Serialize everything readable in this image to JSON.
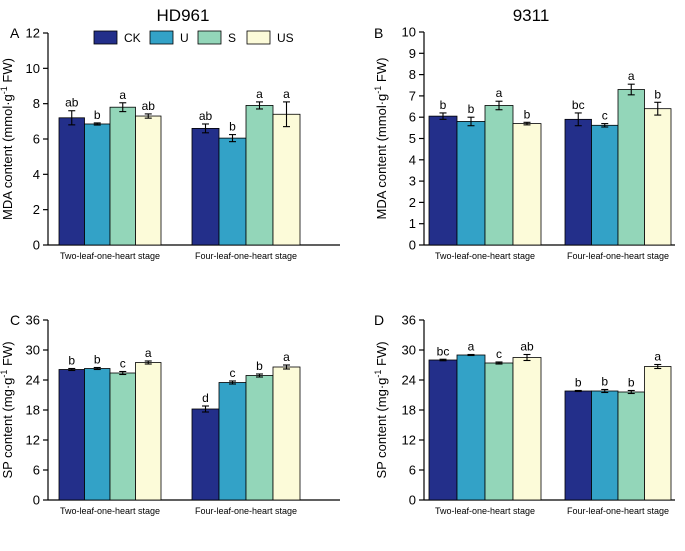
{
  "figure": {
    "column_titles": [
      "HD961",
      "9311"
    ],
    "legend": [
      {
        "label": "CK",
        "color": "#232f8a"
      },
      {
        "label": "U",
        "color": "#33a2c7"
      },
      {
        "label": "S",
        "color": "#93d6b9"
      },
      {
        "label": "US",
        "color": "#fcfbd9"
      }
    ]
  },
  "chart_data": [
    {
      "panel": "A",
      "type": "bar",
      "title": "",
      "ylabel_main": "MDA content (mmol·g",
      "ylabel_sup": "-1",
      "ylabel_tail": " FW)",
      "ylim": [
        0,
        12
      ],
      "yticks": [
        0,
        2,
        4,
        6,
        8,
        10,
        12
      ],
      "categories": [
        "Two-leaf-one-heart stage",
        "Four-leaf-one-heart stage"
      ],
      "series": [
        {
          "name": "CK",
          "values": [
            7.2,
            6.6
          ],
          "errors": [
            0.4,
            0.25
          ],
          "letters": [
            "ab",
            "ab"
          ]
        },
        {
          "name": "U",
          "values": [
            6.85,
            6.05
          ],
          "errors": [
            0.06,
            0.2
          ],
          "letters": [
            "b",
            "b"
          ]
        },
        {
          "name": "S",
          "values": [
            7.8,
            7.9
          ],
          "errors": [
            0.25,
            0.2
          ],
          "letters": [
            "a",
            "a"
          ]
        },
        {
          "name": "US",
          "values": [
            7.3,
            7.4
          ],
          "errors": [
            0.12,
            0.7
          ],
          "letters": [
            "ab",
            "a"
          ]
        }
      ]
    },
    {
      "panel": "B",
      "type": "bar",
      "title": "",
      "ylabel_main": "MDA content (mmol·g",
      "ylabel_sup": "-1",
      "ylabel_tail": " FW)",
      "ylim": [
        0,
        10
      ],
      "yticks": [
        0,
        1,
        2,
        3,
        4,
        5,
        6,
        7,
        8,
        9,
        10
      ],
      "categories": [
        "Two-leaf-one-heart stage",
        "Four-leaf-one-heart stage"
      ],
      "series": [
        {
          "name": "CK",
          "values": [
            6.05,
            5.9
          ],
          "errors": [
            0.15,
            0.3
          ],
          "letters": [
            "b",
            "bc"
          ]
        },
        {
          "name": "U",
          "values": [
            5.8,
            5.62
          ],
          "errors": [
            0.2,
            0.08
          ],
          "letters": [
            "b",
            "c"
          ]
        },
        {
          "name": "S",
          "values": [
            6.55,
            7.3
          ],
          "errors": [
            0.2,
            0.25
          ],
          "letters": [
            "a",
            "a"
          ]
        },
        {
          "name": "US",
          "values": [
            5.7,
            6.4
          ],
          "errors": [
            0.06,
            0.3
          ],
          "letters": [
            "b",
            "b"
          ]
        }
      ]
    },
    {
      "panel": "C",
      "type": "bar",
      "title": "",
      "ylabel_main": "SP content (mg·g",
      "ylabel_sup": "-1",
      "ylabel_tail": " FW)",
      "ylim": [
        0,
        36
      ],
      "yticks": [
        0,
        6,
        12,
        18,
        24,
        30,
        36
      ],
      "categories": [
        "Two-leaf-one-heart stage",
        "Four-leaf-one-heart stage"
      ],
      "series": [
        {
          "name": "CK",
          "values": [
            26.1,
            18.2
          ],
          "errors": [
            0.2,
            0.6
          ],
          "letters": [
            "b",
            "d"
          ]
        },
        {
          "name": "U",
          "values": [
            26.3,
            23.5
          ],
          "errors": [
            0.2,
            0.3
          ],
          "letters": [
            "b",
            "c"
          ]
        },
        {
          "name": "S",
          "values": [
            25.4,
            24.9
          ],
          "errors": [
            0.3,
            0.3
          ],
          "letters": [
            "c",
            "b"
          ]
        },
        {
          "name": "US",
          "values": [
            27.5,
            26.6
          ],
          "errors": [
            0.3,
            0.4
          ],
          "letters": [
            "a",
            "a"
          ]
        }
      ]
    },
    {
      "panel": "D",
      "type": "bar",
      "title": "",
      "ylabel_main": "SP content (mg·g",
      "ylabel_sup": "-1",
      "ylabel_tail": " FW)",
      "ylim": [
        0,
        36
      ],
      "yticks": [
        0,
        6,
        12,
        18,
        24,
        30,
        36
      ],
      "categories": [
        "Two-leaf-one-heart stage",
        "Four-leaf-one-heart stage"
      ],
      "series": [
        {
          "name": "CK",
          "values": [
            28.0,
            21.8
          ],
          "errors": [
            0.15,
            0.1
          ],
          "letters": [
            "bc",
            "b"
          ]
        },
        {
          "name": "U",
          "values": [
            29.0,
            21.8
          ],
          "errors": [
            0.1,
            0.3
          ],
          "letters": [
            "a",
            "b"
          ]
        },
        {
          "name": "S",
          "values": [
            27.4,
            21.6
          ],
          "errors": [
            0.2,
            0.3
          ],
          "letters": [
            "c",
            "b"
          ]
        },
        {
          "name": "US",
          "values": [
            28.5,
            26.7
          ],
          "errors": [
            0.6,
            0.4
          ],
          "letters": [
            "ab",
            "a"
          ]
        }
      ]
    }
  ]
}
